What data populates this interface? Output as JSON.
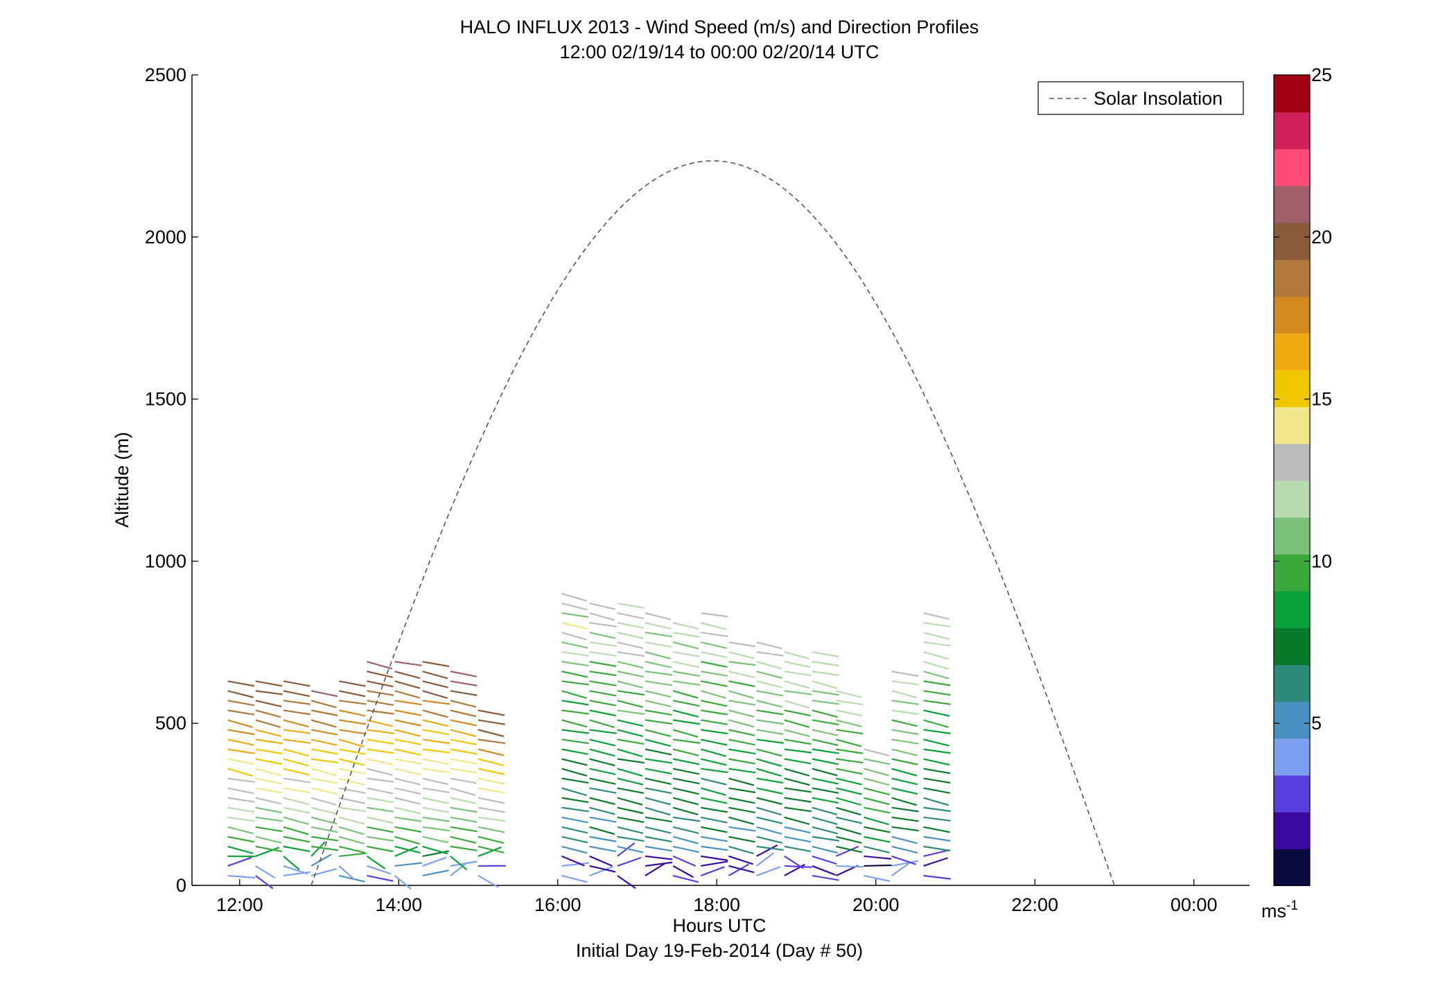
{
  "chart_data": {
    "type": "wind-barb-profile",
    "title": "HALO INFLUX 2013 - Wind Speed (m/s) and Direction Profiles",
    "subtitle": "12:00 02/19/14 to 00:00 02/20/14  UTC",
    "xlabel": "Hours UTC",
    "xlabel2": "Initial Day 19-Feb-2014 (Day # 50)",
    "ylabel": "Altitude (m)",
    "xlim_hours": [
      11.4,
      24.7
    ],
    "ylim": [
      0,
      2500
    ],
    "x_ticks": [
      {
        "hour": 12,
        "label": "12:00"
      },
      {
        "hour": 14,
        "label": "14:00"
      },
      {
        "hour": 16,
        "label": "16:00"
      },
      {
        "hour": 18,
        "label": "18:00"
      },
      {
        "hour": 20,
        "label": "20:00"
      },
      {
        "hour": 22,
        "label": "22:00"
      },
      {
        "hour": 24,
        "label": "00:00"
      }
    ],
    "y_ticks": [
      0,
      500,
      1000,
      1500,
      2000,
      2500
    ],
    "legend": {
      "label": "Solar Insolation",
      "placement": "top-right",
      "style": "dashed",
      "color": "#555555"
    },
    "solar_insolation": {
      "rise_hour": 12.9,
      "set_hour": 23.0,
      "peak_altitude_equiv": 2235
    },
    "colorbar": {
      "range": [
        0,
        25
      ],
      "ticks": [
        5,
        10,
        15,
        20,
        25
      ],
      "unit_label": "ms",
      "unit_exponent": "-1",
      "colors": [
        "#0a0a40",
        "#3a0aa0",
        "#5a3ee0",
        "#7ea0f0",
        "#4a90c0",
        "#2e8a7a",
        "#0a7a2a",
        "#0aa03a",
        "#3aa83a",
        "#7ac27a",
        "#b8dcb0",
        "#bcbcbc",
        "#f2e68a",
        "#f0c800",
        "#eeaa10",
        "#d28a20",
        "#b0783a",
        "#8a5a3a",
        "#a0606a",
        "#ff4a7a",
        "#d0205a",
        "#a00010"
      ]
    },
    "series": [
      {
        "hour": 11.85,
        "alt_max": 640,
        "step": 30,
        "valid": true
      },
      {
        "hour": 12.2,
        "alt_max": 635,
        "step": 30,
        "valid": true
      },
      {
        "hour": 12.55,
        "alt_max": 640,
        "step": 30,
        "valid": true
      },
      {
        "hour": 12.9,
        "alt_max": 615,
        "step": 30,
        "valid": true
      },
      {
        "hour": 13.25,
        "alt_max": 650,
        "step": 30,
        "valid": true
      },
      {
        "hour": 13.6,
        "alt_max": 690,
        "step": 30,
        "valid": true
      },
      {
        "hour": 13.95,
        "alt_max": 690,
        "step": 30,
        "valid": true
      },
      {
        "hour": 14.3,
        "alt_max": 695,
        "step": 30,
        "valid": true
      },
      {
        "hour": 14.65,
        "alt_max": 660,
        "step": 30,
        "valid": true
      },
      {
        "hour": 15.0,
        "alt_max": 560,
        "step": 30,
        "valid": true
      },
      {
        "hour": 16.05,
        "alt_max": 900,
        "step": 30,
        "valid": true
      },
      {
        "hour": 16.4,
        "alt_max": 885,
        "step": 30,
        "valid": true
      },
      {
        "hour": 16.75,
        "alt_max": 870,
        "step": 30,
        "valid": true
      },
      {
        "hour": 17.1,
        "alt_max": 850,
        "step": 30,
        "valid": true
      },
      {
        "hour": 17.45,
        "alt_max": 820,
        "step": 30,
        "valid": true
      },
      {
        "hour": 17.8,
        "alt_max": 860,
        "step": 30,
        "valid": true
      },
      {
        "hour": 18.15,
        "alt_max": 755,
        "step": 30,
        "valid": true
      },
      {
        "hour": 18.5,
        "alt_max": 750,
        "step": 30,
        "valid": true
      },
      {
        "hour": 18.85,
        "alt_max": 745,
        "step": 30,
        "valid": true
      },
      {
        "hour": 19.2,
        "alt_max": 720,
        "step": 30,
        "valid": true
      },
      {
        "hour": 19.5,
        "alt_max": 600,
        "step": 30,
        "valid": true
      },
      {
        "hour": 19.85,
        "alt_max": 430,
        "step": 30,
        "valid": true
      },
      {
        "hour": 20.2,
        "alt_max": 660,
        "step": 30,
        "valid": true
      },
      {
        "hour": 20.6,
        "alt_max": 840,
        "step": 30,
        "valid": true
      }
    ],
    "notes": "Each column holds wind vectors every ~30 m; color encodes wind speed (m/s) per colorbar."
  }
}
